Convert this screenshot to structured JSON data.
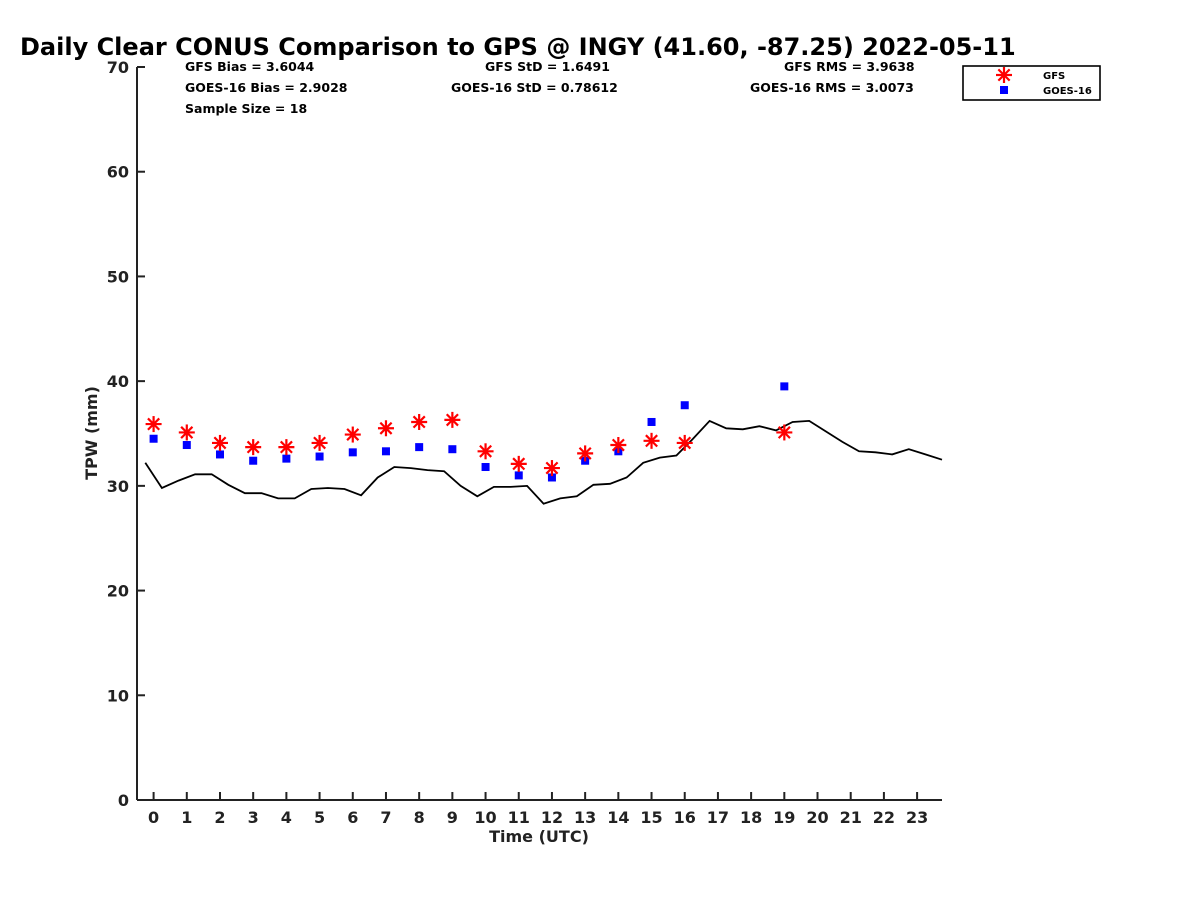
{
  "chart_data": {
    "type": "scatter",
    "title": "Daily Clear CONUS Comparison to GPS @ INGY (41.60, -87.25) 2022-05-11",
    "xlabel": "Time (UTC)",
    "ylabel": "TPW (mm)",
    "xlim": [
      -0.5,
      23.75
    ],
    "ylim": [
      0,
      70
    ],
    "x_ticks": [
      "0",
      "1",
      "2",
      "3",
      "4",
      "5",
      "6",
      "7",
      "8",
      "9",
      "10",
      "11",
      "12",
      "13",
      "14",
      "15",
      "16",
      "17",
      "18",
      "19",
      "20",
      "21",
      "22",
      "23"
    ],
    "y_ticks": [
      "0",
      "10",
      "20",
      "30",
      "40",
      "50",
      "60",
      "70"
    ],
    "grid": false,
    "legend_position": "top-right",
    "stats": {
      "gfs_bias": "GFS Bias = 3.6044",
      "goes_bias": "GOES-16 Bias = 2.9028",
      "sample_size": "Sample Size = 18",
      "gfs_std": "GFS StD = 1.6491",
      "goes_std": "GOES-16 StD = 0.78612",
      "gfs_rms": "GFS RMS = 3.9638",
      "goes_rms": "GOES-16 RMS = 3.0073"
    },
    "series": [
      {
        "name": "GFS",
        "marker": "asterisk",
        "color": "#ff0000",
        "x": [
          0,
          1,
          2,
          3,
          4,
          5,
          6,
          7,
          8,
          9,
          10,
          11,
          12,
          13,
          14,
          15,
          16,
          19
        ],
        "y": [
          35.9,
          35.1,
          34.1,
          33.7,
          33.7,
          34.1,
          34.9,
          35.5,
          36.1,
          36.3,
          33.3,
          32.1,
          31.7,
          33.1,
          33.9,
          34.3,
          34.1,
          35.1
        ]
      },
      {
        "name": "GOES-16",
        "marker": "square",
        "color": "#0000ff",
        "x": [
          0,
          1,
          2,
          3,
          4,
          5,
          6,
          7,
          8,
          9,
          10,
          11,
          12,
          13,
          14,
          15,
          16,
          19
        ],
        "y": [
          34.5,
          33.9,
          33.0,
          32.4,
          32.6,
          32.8,
          33.2,
          33.3,
          33.7,
          33.5,
          31.8,
          31.0,
          30.8,
          32.4,
          33.3,
          36.1,
          37.7,
          39.5
        ]
      },
      {
        "marker": "line",
        "color": "#000000",
        "x": [
          -0.25,
          0.25,
          0.75,
          1.25,
          1.75,
          2.25,
          2.75,
          3.25,
          3.75,
          4.25,
          4.75,
          5.25,
          5.75,
          6.25,
          6.75,
          7.25,
          7.75,
          8.25,
          8.75,
          9.25,
          9.75,
          10.25,
          10.75,
          11.25,
          11.75,
          12.25,
          12.75,
          13.25,
          13.75,
          14.25,
          14.75,
          15.25,
          15.75,
          16.25,
          16.75,
          17.25,
          17.75,
          18.25,
          18.75,
          19.25,
          19.75,
          20.25,
          20.75,
          21.25,
          21.75,
          22.25,
          22.75,
          23.25,
          23.75
        ],
        "y": [
          32.2,
          29.8,
          30.5,
          31.1,
          31.1,
          30.1,
          29.3,
          29.3,
          28.8,
          28.8,
          29.7,
          29.8,
          29.7,
          29.1,
          30.8,
          31.8,
          31.7,
          31.5,
          31.4,
          30.0,
          29.0,
          29.9,
          29.9,
          30.0,
          28.3,
          28.8,
          29.0,
          30.1,
          30.2,
          30.8,
          32.2,
          32.7,
          32.9,
          34.5,
          36.2,
          35.5,
          35.4,
          35.7,
          35.3,
          36.1,
          36.2,
          35.2,
          34.2,
          33.3,
          33.2,
          33.0,
          33.5,
          33.0,
          32.5
        ]
      }
    ]
  }
}
